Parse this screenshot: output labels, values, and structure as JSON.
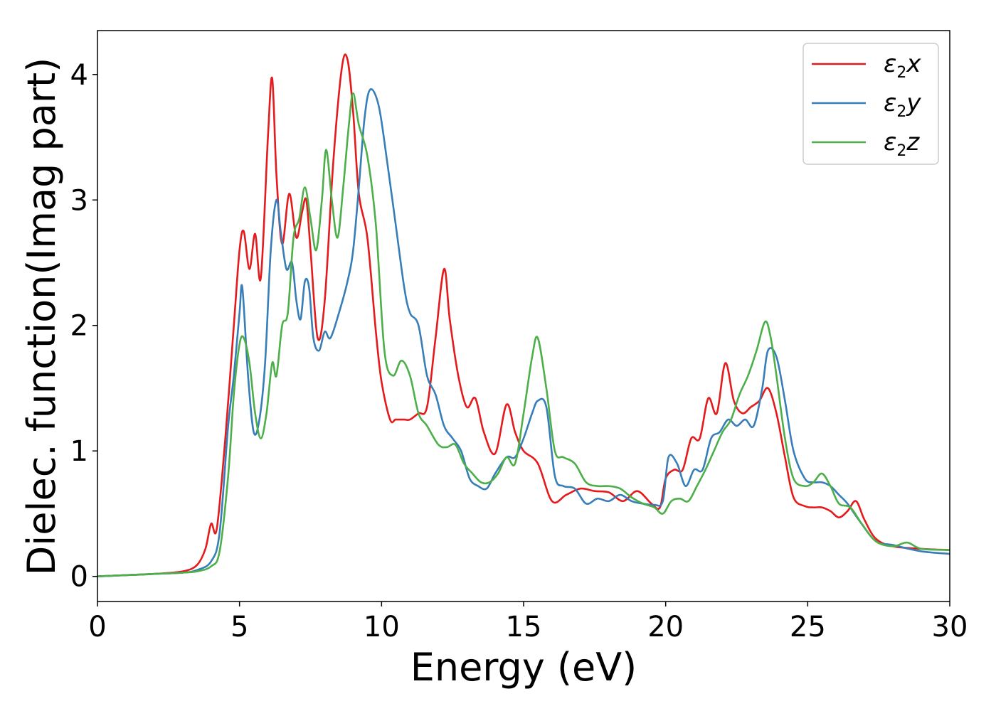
{
  "chart_data": {
    "type": "line",
    "title": "",
    "xlabel": "Energy (eV)",
    "ylabel": "Dielec. function(Imag part)",
    "xlim": [
      0,
      30
    ],
    "ylim": [
      -0.2,
      4.35
    ],
    "xticks": [
      0,
      5,
      10,
      15,
      20,
      25,
      30
    ],
    "yticks": [
      0,
      1,
      2,
      3,
      4
    ],
    "grid": false,
    "legend_position": "top-right",
    "series": [
      {
        "name": "ε2x",
        "legend": {
          "base": "ε",
          "sub": "2",
          "suffix": "x"
        },
        "color": "#e41a1c",
        "x": [
          0,
          1,
          2,
          3,
          3.5,
          3.8,
          4.0,
          4.2,
          4.5,
          4.8,
          5.0,
          5.15,
          5.35,
          5.55,
          5.75,
          6.0,
          6.15,
          6.3,
          6.5,
          6.75,
          7.0,
          7.2,
          7.35,
          7.5,
          7.75,
          8.0,
          8.3,
          8.6,
          8.8,
          9.0,
          9.2,
          9.5,
          9.8,
          10.0,
          10.3,
          10.5,
          10.8,
          11.0,
          11.3,
          11.6,
          11.9,
          12.2,
          12.4,
          12.7,
          13.0,
          13.3,
          13.6,
          14.0,
          14.4,
          14.7,
          15.0,
          15.5,
          16.0,
          16.5,
          17.0,
          17.5,
          18.0,
          18.5,
          19.0,
          19.5,
          19.8,
          20.0,
          20.3,
          20.6,
          20.9,
          21.2,
          21.5,
          21.8,
          22.1,
          22.4,
          22.7,
          23.0,
          23.3,
          23.6,
          23.9,
          24.2,
          24.5,
          24.9,
          25.2,
          25.5,
          25.8,
          26.1,
          26.4,
          26.7,
          27.0,
          27.4,
          28.0,
          29.0,
          30.0
        ],
        "y": [
          0.0,
          0.01,
          0.02,
          0.04,
          0.09,
          0.22,
          0.42,
          0.38,
          1.1,
          2.0,
          2.6,
          2.75,
          2.45,
          2.73,
          2.38,
          3.5,
          3.97,
          3.2,
          2.65,
          3.05,
          2.7,
          2.9,
          3.0,
          2.6,
          1.9,
          2.2,
          3.3,
          4.05,
          4.12,
          3.7,
          3.05,
          2.7,
          1.95,
          1.55,
          1.25,
          1.25,
          1.25,
          1.25,
          1.3,
          1.35,
          1.9,
          2.45,
          2.05,
          1.6,
          1.35,
          1.42,
          1.15,
          0.98,
          1.37,
          1.15,
          1.0,
          0.9,
          0.6,
          0.65,
          0.7,
          0.68,
          0.67,
          0.6,
          0.68,
          0.58,
          0.55,
          0.78,
          0.85,
          0.85,
          1.1,
          1.1,
          1.42,
          1.3,
          1.7,
          1.4,
          1.3,
          1.35,
          1.4,
          1.5,
          1.3,
          0.95,
          0.63,
          0.56,
          0.55,
          0.55,
          0.52,
          0.47,
          0.52,
          0.6,
          0.45,
          0.3,
          0.24,
          0.22,
          0.21
        ]
      },
      {
        "name": "ε2y",
        "legend": {
          "base": "ε",
          "sub": "2",
          "suffix": "y"
        },
        "color": "#377eb8",
        "x": [
          0,
          1,
          2,
          3,
          3.5,
          4.0,
          4.3,
          4.6,
          4.8,
          5.0,
          5.1,
          5.3,
          5.5,
          5.7,
          5.9,
          6.1,
          6.3,
          6.45,
          6.65,
          6.85,
          7.0,
          7.15,
          7.3,
          7.45,
          7.6,
          7.8,
          8.0,
          8.2,
          8.5,
          8.8,
          9.0,
          9.2,
          9.4,
          9.6,
          9.9,
          10.2,
          10.5,
          10.8,
          11.0,
          11.3,
          11.6,
          11.9,
          12.2,
          12.5,
          12.8,
          13.1,
          13.4,
          13.7,
          14.0,
          14.4,
          14.7,
          15.0,
          15.3,
          15.5,
          15.8,
          16.1,
          16.4,
          16.8,
          17.2,
          17.6,
          18.0,
          18.4,
          18.8,
          19.2,
          19.6,
          19.9,
          20.1,
          20.4,
          20.7,
          21.0,
          21.3,
          21.6,
          21.9,
          22.2,
          22.5,
          22.8,
          23.1,
          23.4,
          23.6,
          23.9,
          24.2,
          24.5,
          24.9,
          25.2,
          25.5,
          25.8,
          26.1,
          26.4,
          26.8,
          27.4,
          28.0,
          29.0,
          30.0
        ],
        "y": [
          0.0,
          0.01,
          0.02,
          0.03,
          0.05,
          0.12,
          0.35,
          1.2,
          1.6,
          2.1,
          2.3,
          1.6,
          1.15,
          1.25,
          1.7,
          2.6,
          3.0,
          2.75,
          2.45,
          2.5,
          2.2,
          2.05,
          2.35,
          2.3,
          1.9,
          1.8,
          1.95,
          1.9,
          2.1,
          2.35,
          2.6,
          3.1,
          3.65,
          3.88,
          3.75,
          3.3,
          2.8,
          2.3,
          2.1,
          2.0,
          1.6,
          1.45,
          1.2,
          1.1,
          1.0,
          0.78,
          0.72,
          0.7,
          0.82,
          0.95,
          0.95,
          1.1,
          1.3,
          1.4,
          1.35,
          0.8,
          0.72,
          0.7,
          0.58,
          0.62,
          0.6,
          0.65,
          0.6,
          0.58,
          0.57,
          0.6,
          0.95,
          0.9,
          0.72,
          0.85,
          0.85,
          1.1,
          1.15,
          1.25,
          1.2,
          1.25,
          1.2,
          1.5,
          1.8,
          1.75,
          1.4,
          1.0,
          0.78,
          0.75,
          0.75,
          0.72,
          0.65,
          0.58,
          0.45,
          0.28,
          0.25,
          0.2,
          0.18
        ]
      },
      {
        "name": "ε2z",
        "legend": {
          "base": "ε",
          "sub": "2",
          "suffix": "z"
        },
        "color": "#4daf4a",
        "x": [
          0,
          1,
          2,
          3,
          3.5,
          4.0,
          4.3,
          4.6,
          4.8,
          5.0,
          5.15,
          5.35,
          5.55,
          5.75,
          5.95,
          6.15,
          6.3,
          6.5,
          6.7,
          6.9,
          7.1,
          7.3,
          7.5,
          7.7,
          7.9,
          8.05,
          8.25,
          8.45,
          8.65,
          8.85,
          9.0,
          9.2,
          9.5,
          9.8,
          10.1,
          10.4,
          10.7,
          11.0,
          11.3,
          11.6,
          12.0,
          12.3,
          12.6,
          12.9,
          13.2,
          13.5,
          13.8,
          14.1,
          14.4,
          14.7,
          15.0,
          15.3,
          15.5,
          15.8,
          16.1,
          16.4,
          16.8,
          17.2,
          17.6,
          18.0,
          18.4,
          18.8,
          19.2,
          19.6,
          19.9,
          20.2,
          20.5,
          20.8,
          21.1,
          21.4,
          21.7,
          22.0,
          22.3,
          22.6,
          22.9,
          23.2,
          23.5,
          23.7,
          23.9,
          24.2,
          24.5,
          24.9,
          25.2,
          25.5,
          25.8,
          26.1,
          26.5,
          26.9,
          27.4,
          28.0,
          28.5,
          29.0,
          30.0
        ],
        "y": [
          0.0,
          0.01,
          0.02,
          0.03,
          0.04,
          0.08,
          0.2,
          0.8,
          1.45,
          1.85,
          1.9,
          1.7,
          1.3,
          1.1,
          1.3,
          1.7,
          1.6,
          2.0,
          2.1,
          2.7,
          2.85,
          3.1,
          2.85,
          2.6,
          3.0,
          3.4,
          3.0,
          2.7,
          3.1,
          3.6,
          3.85,
          3.6,
          3.35,
          2.8,
          1.8,
          1.6,
          1.72,
          1.6,
          1.3,
          1.2,
          1.05,
          1.03,
          1.05,
          0.9,
          0.82,
          0.75,
          0.75,
          0.82,
          0.95,
          0.9,
          1.3,
          1.75,
          1.9,
          1.5,
          1.0,
          0.95,
          0.9,
          0.75,
          0.72,
          0.72,
          0.7,
          0.63,
          0.58,
          0.55,
          0.5,
          0.6,
          0.62,
          0.6,
          0.72,
          0.85,
          1.0,
          1.15,
          1.25,
          1.45,
          1.6,
          1.8,
          2.03,
          1.9,
          1.6,
          1.1,
          0.78,
          0.72,
          0.75,
          0.82,
          0.72,
          0.58,
          0.55,
          0.42,
          0.28,
          0.24,
          0.27,
          0.22,
          0.21
        ]
      }
    ]
  }
}
